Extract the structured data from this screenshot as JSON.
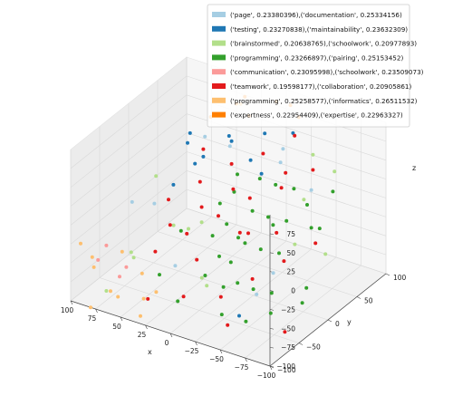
{
  "chart_data": {
    "type": "scatter",
    "projection": "3d",
    "xlabel": "x",
    "ylabel": "y",
    "zlabel": "z",
    "xlim": [
      -100,
      100
    ],
    "ylim": [
      -100,
      100
    ],
    "zlim": [
      -100,
      100
    ],
    "xticks": [
      "−100",
      "−75",
      "−50",
      "−25",
      "0",
      "25",
      "50",
      "75",
      "100"
    ],
    "yticks": [
      "−100",
      "−50",
      "0",
      "50",
      "100"
    ],
    "zticks": [
      "−100",
      "−75",
      "−50",
      "−25",
      "0",
      "25",
      "50",
      "75"
    ],
    "grid": true,
    "legend_position": "top-right",
    "series": [
      {
        "name": "('page', 0.23380396),('documentation', 0.25334156)",
        "color": "#a6cee3",
        "points": [
          [
            -60,
            40,
            30
          ],
          [
            -20,
            60,
            55
          ],
          [
            30,
            -40,
            -60
          ],
          [
            70,
            80,
            20
          ],
          [
            10,
            20,
            70
          ],
          [
            -80,
            -60,
            -10
          ],
          [
            50,
            -80,
            40
          ],
          [
            -40,
            -20,
            -80
          ],
          [
            80,
            10,
            -30
          ],
          [
            0,
            90,
            10
          ]
        ]
      },
      {
        "name": "('testing', 0.23270838),('maintainability', 0.23632309)",
        "color": "#1f78b4",
        "points": [
          [
            20,
            40,
            60
          ],
          [
            40,
            70,
            40
          ],
          [
            -30,
            60,
            80
          ],
          [
            60,
            60,
            10
          ],
          [
            80,
            80,
            -20
          ],
          [
            10,
            80,
            50
          ],
          [
            -10,
            40,
            30
          ],
          [
            50,
            20,
            70
          ],
          [
            70,
            50,
            30
          ],
          [
            30,
            90,
            0
          ],
          [
            -40,
            -50,
            -90
          ],
          [
            90,
            60,
            -40
          ]
        ]
      },
      {
        "name": "('brainstormed', 0.20638765),('schoolwork', 0.20977893)",
        "color": "#b2df8a",
        "points": [
          [
            -90,
            -40,
            20
          ],
          [
            -70,
            10,
            40
          ],
          [
            -50,
            60,
            60
          ],
          [
            60,
            -60,
            -50
          ],
          [
            80,
            -30,
            -70
          ],
          [
            90,
            30,
            -10
          ],
          [
            -20,
            -80,
            -30
          ],
          [
            40,
            0,
            -40
          ],
          [
            -60,
            80,
            30
          ],
          [
            70,
            -90,
            -80
          ],
          [
            20,
            -60,
            10
          ],
          [
            -80,
            30,
            -40
          ],
          [
            50,
            40,
            -60
          ],
          [
            10,
            -20,
            -90
          ]
        ]
      },
      {
        "name": "('programming', 0.23266897),('pairing', 0.25153452)",
        "color": "#33a02c",
        "points": [
          [
            -90,
            -80,
            -20
          ],
          [
            -80,
            -50,
            10
          ],
          [
            -70,
            -20,
            30
          ],
          [
            -60,
            10,
            50
          ],
          [
            -50,
            -70,
            -30
          ],
          [
            -40,
            -40,
            0
          ],
          [
            -30,
            -10,
            20
          ],
          [
            -20,
            20,
            40
          ],
          [
            -90,
            -20,
            -50
          ],
          [
            -70,
            -90,
            -60
          ],
          [
            -60,
            -60,
            -40
          ],
          [
            -50,
            -30,
            -10
          ],
          [
            -40,
            0,
            10
          ],
          [
            -30,
            30,
            30
          ],
          [
            -80,
            20,
            0
          ],
          [
            -20,
            -50,
            -20
          ],
          [
            -10,
            -20,
            0
          ],
          [
            0,
            10,
            20
          ],
          [
            -60,
            40,
            -20
          ],
          [
            -40,
            -80,
            -70
          ],
          [
            -30,
            -60,
            -50
          ],
          [
            -20,
            -30,
            -40
          ],
          [
            -10,
            0,
            -30
          ],
          [
            0,
            -40,
            -60
          ],
          [
            10,
            -10,
            -30
          ],
          [
            20,
            20,
            -10
          ],
          [
            -50,
            50,
            0
          ],
          [
            -70,
            60,
            20
          ],
          [
            10,
            -70,
            -80
          ],
          [
            30,
            -30,
            -20
          ],
          [
            -80,
            -10,
            -80
          ],
          [
            -60,
            -30,
            -90
          ],
          [
            -10,
            60,
            -50
          ],
          [
            20,
            50,
            10
          ],
          [
            40,
            -50,
            -70
          ]
        ]
      },
      {
        "name": "('communication', 0.23095998),('schoolwork', 0.23509073)",
        "color": "#fb9a99",
        "points": [
          [
            70,
            -90,
            -20
          ],
          [
            90,
            -70,
            -60
          ],
          [
            50,
            -90,
            -40
          ],
          [
            80,
            -50,
            -90
          ]
        ]
      },
      {
        "name": "('teamwork', 0.19598177),('collaboration', 0.20905861)",
        "color": "#e31a1c",
        "points": [
          [
            -50,
            60,
            40
          ],
          [
            -30,
            40,
            20
          ],
          [
            -10,
            20,
            10
          ],
          [
            10,
            0,
            -10
          ],
          [
            30,
            -20,
            -30
          ],
          [
            50,
            -40,
            -50
          ],
          [
            -70,
            30,
            -30
          ],
          [
            -50,
            10,
            -50
          ],
          [
            -30,
            -10,
            -70
          ],
          [
            -10,
            -30,
            -90
          ],
          [
            20,
            40,
            30
          ],
          [
            40,
            20,
            10
          ],
          [
            60,
            0,
            -10
          ],
          [
            -20,
            80,
            60
          ],
          [
            0,
            60,
            40
          ],
          [
            30,
            60,
            -20
          ],
          [
            50,
            40,
            -40
          ],
          [
            -40,
            -70,
            -90
          ],
          [
            70,
            20,
            -60
          ],
          [
            -80,
            -40,
            -100
          ],
          [
            10,
            -60,
            -80
          ],
          [
            -60,
            -20,
            10
          ],
          [
            40,
            -70,
            -90
          ],
          [
            0,
            20,
            -40
          ],
          [
            -20,
            0,
            -20
          ],
          [
            60,
            60,
            20
          ],
          [
            20,
            -20,
            -60
          ],
          [
            -40,
            30,
            50
          ]
        ]
      },
      {
        "name": "('programming', 0.25258577),('informatics', 0.26511532)",
        "color": "#fdbf6f",
        "points": [
          [
            40,
            90,
            70
          ],
          [
            60,
            -100,
            -70
          ],
          [
            80,
            -100,
            -100
          ],
          [
            90,
            -80,
            -50
          ],
          [
            30,
            -100,
            -90
          ],
          [
            70,
            -70,
            -100
          ],
          [
            100,
            -60,
            -80
          ],
          [
            50,
            -60,
            -100
          ],
          [
            20,
            -90,
            -60
          ],
          [
            60,
            -80,
            -30
          ],
          [
            90,
            -100,
            -20
          ],
          [
            40,
            -80,
            -50
          ]
        ]
      },
      {
        "name": "('expertness', 0.22954409),('expertise', 0.22963327)",
        "color": "#ff7f00",
        "points": [
          [
            -10,
            90,
            90
          ],
          [
            10,
            100,
            80
          ],
          [
            30,
            80,
            90
          ],
          [
            -30,
            70,
            95
          ],
          [
            50,
            100,
            60
          ],
          [
            20,
            70,
            75
          ],
          [
            70,
            90,
            40
          ]
        ]
      }
    ]
  }
}
